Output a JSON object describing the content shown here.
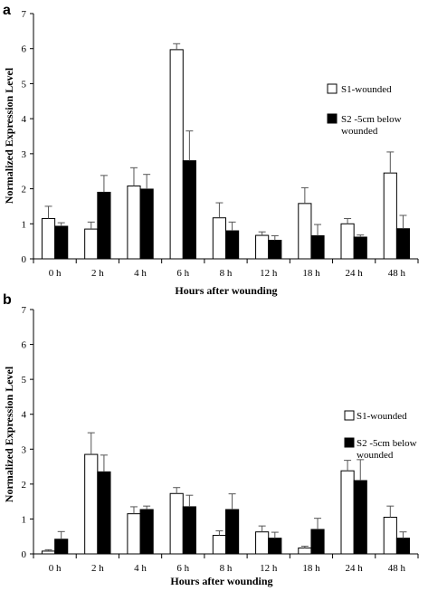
{
  "chart_data": [
    {
      "panel_label": "a",
      "type": "bar",
      "categories": [
        "0 h",
        "2 h",
        "4 h",
        "6 h",
        "8 h",
        "12 h",
        "18 h",
        "24 h",
        "48 h"
      ],
      "series": [
        {
          "name": "S1-wounded",
          "color": "#ffffff",
          "values": [
            1.15,
            0.85,
            2.08,
            5.97,
            1.17,
            0.67,
            1.58,
            1.0,
            2.45
          ],
          "errors": [
            0.35,
            0.2,
            0.52,
            0.17,
            0.43,
            0.1,
            0.45,
            0.15,
            0.6
          ]
        },
        {
          "name": "S2 -5cm below wounded",
          "color": "#000000",
          "values": [
            0.93,
            1.9,
            1.99,
            2.8,
            0.8,
            0.53,
            0.66,
            0.62,
            0.86
          ],
          "errors": [
            0.1,
            0.48,
            0.42,
            0.85,
            0.25,
            0.13,
            0.32,
            0.06,
            0.38
          ]
        }
      ],
      "xlabel": "Hours after wounding",
      "ylabel": "Normalized Expression Level",
      "ylim": [
        0,
        7
      ],
      "yticks": [
        0,
        1,
        2,
        3,
        4,
        5,
        6,
        7
      ],
      "grid": false,
      "legend_position": "right"
    },
    {
      "panel_label": "b",
      "type": "bar",
      "categories": [
        "0 h",
        "2 h",
        "4 h",
        "6 h",
        "8 h",
        "12 h",
        "18 h",
        "24 h",
        "48 h"
      ],
      "series": [
        {
          "name": "S1-wounded",
          "color": "#ffffff",
          "values": [
            0.08,
            2.85,
            1.15,
            1.73,
            0.53,
            0.63,
            0.17,
            2.38,
            1.05
          ],
          "errors": [
            0.04,
            0.62,
            0.2,
            0.17,
            0.13,
            0.17,
            0.05,
            0.3,
            0.32
          ]
        },
        {
          "name": "S2 -5cm below wounded",
          "color": "#000000",
          "values": [
            0.42,
            2.35,
            1.27,
            1.35,
            1.27,
            0.45,
            0.7,
            2.1,
            0.45
          ],
          "errors": [
            0.22,
            0.48,
            0.1,
            0.33,
            0.45,
            0.17,
            0.32,
            0.6,
            0.18
          ]
        }
      ],
      "xlabel": "Hours after wounding",
      "ylabel": "Normalized Expression Level",
      "ylim": [
        0,
        7
      ],
      "yticks": [
        0,
        1,
        2,
        3,
        4,
        5,
        6,
        7
      ],
      "grid": false,
      "legend_position": "right"
    }
  ]
}
